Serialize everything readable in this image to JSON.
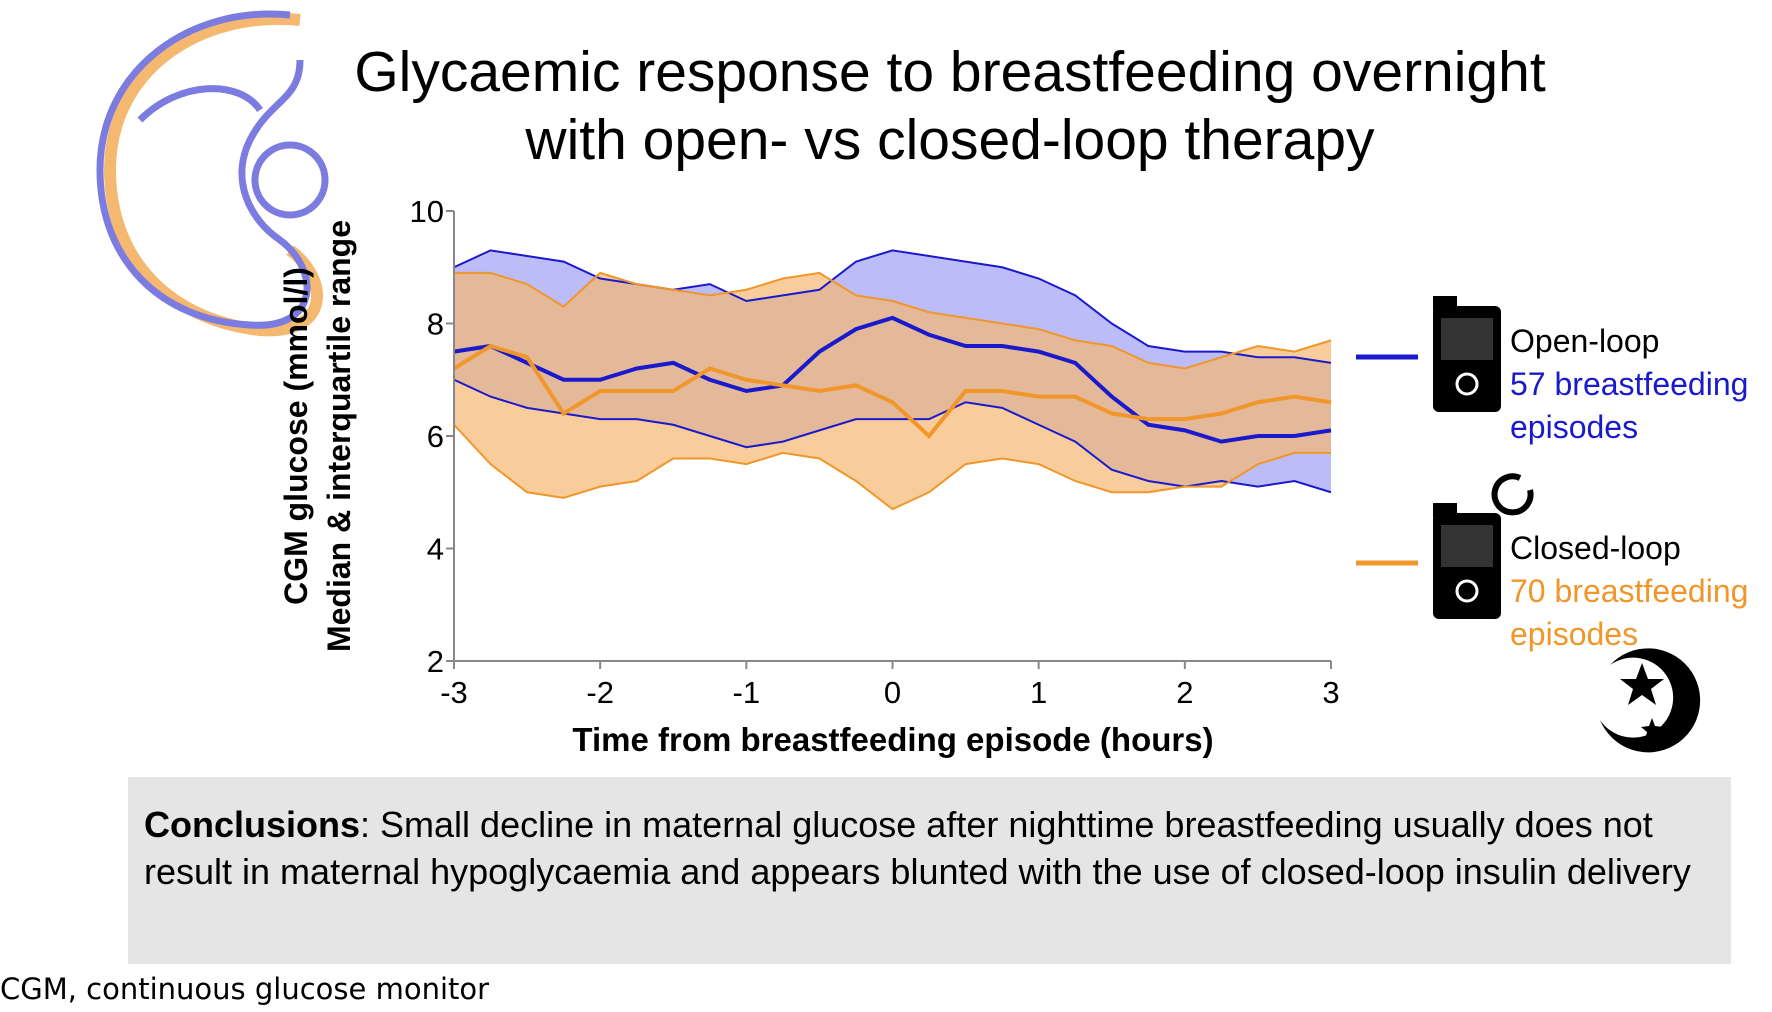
{
  "title": "Glycaemic response to breastfeeding overnight with open- vs closed-loop therapy",
  "chart_data": {
    "type": "line",
    "x_label": "Time from breastfeeding episode (hours)",
    "y_label": [
      "CGM glucose (mmol/l)",
      "Median & interquartile range"
    ],
    "x": [
      -3,
      -2.75,
      -2.5,
      -2.25,
      -2,
      -1.75,
      -1.5,
      -1.25,
      -1,
      -0.75,
      -0.5,
      -0.25,
      0,
      0.25,
      0.5,
      0.75,
      1,
      1.25,
      1.5,
      1.75,
      2,
      2.25,
      2.5,
      2.75,
      3
    ],
    "xlim": [
      -3,
      3
    ],
    "xticks": [
      -3,
      -2,
      -1,
      0,
      1,
      2,
      3
    ],
    "ylim": [
      2,
      10
    ],
    "yticks": [
      2,
      4,
      6,
      8,
      10
    ],
    "series": [
      {
        "name": "Open-loop",
        "subtitle": "57 breastfeeding episodes",
        "color": "#1a1acc",
        "band_color": "#9f9ff5",
        "values": [
          7.5,
          7.6,
          7.3,
          7.0,
          7.0,
          7.2,
          7.3,
          7.0,
          6.8,
          6.9,
          7.5,
          7.9,
          8.1,
          7.8,
          7.6,
          7.6,
          7.5,
          7.3,
          6.7,
          6.2,
          6.1,
          5.9,
          6.0,
          6.0,
          6.1
        ],
        "upper": [
          9.0,
          9.3,
          9.2,
          9.1,
          8.8,
          8.7,
          8.6,
          8.7,
          8.4,
          8.5,
          8.6,
          9.1,
          9.3,
          9.2,
          9.1,
          9.0,
          8.8,
          8.5,
          8.0,
          7.6,
          7.5,
          7.5,
          7.4,
          7.4,
          7.3
        ],
        "lower": [
          7.0,
          6.7,
          6.5,
          6.4,
          6.3,
          6.3,
          6.2,
          6.0,
          5.8,
          5.9,
          6.1,
          6.3,
          6.3,
          6.3,
          6.6,
          6.5,
          6.2,
          5.9,
          5.4,
          5.2,
          5.1,
          5.2,
          5.1,
          5.2,
          5.0
        ]
      },
      {
        "name": "Closed-loop",
        "subtitle": "70 breastfeeding episodes",
        "color": "#f0962a",
        "band_color": "#f5b870",
        "values": [
          7.2,
          7.6,
          7.4,
          6.4,
          6.8,
          6.8,
          6.8,
          7.2,
          7.0,
          6.9,
          6.8,
          6.9,
          6.6,
          6.0,
          6.8,
          6.8,
          6.7,
          6.7,
          6.4,
          6.3,
          6.3,
          6.4,
          6.6,
          6.7,
          6.6
        ],
        "upper": [
          8.9,
          8.9,
          8.7,
          8.3,
          8.9,
          8.7,
          8.6,
          8.5,
          8.6,
          8.8,
          8.9,
          8.5,
          8.4,
          8.2,
          8.1,
          8.0,
          7.9,
          7.7,
          7.6,
          7.3,
          7.2,
          7.4,
          7.6,
          7.5,
          7.7
        ],
        "lower": [
          6.2,
          5.5,
          5.0,
          4.9,
          5.1,
          5.2,
          5.6,
          5.6,
          5.5,
          5.7,
          5.6,
          5.2,
          4.7,
          5.0,
          5.5,
          5.6,
          5.5,
          5.2,
          5.0,
          5.0,
          5.1,
          5.1,
          5.5,
          5.7,
          5.7
        ]
      }
    ]
  },
  "conclusions": {
    "label": "Conclusions",
    "text": ": Small decline in maternal glucose after nighttime breastfeeding usually does not result in maternal hypoglycaemia and appears blunted with the use of closed-loop insulin delivery"
  },
  "footnote": "CGM, continuous glucose monitor"
}
